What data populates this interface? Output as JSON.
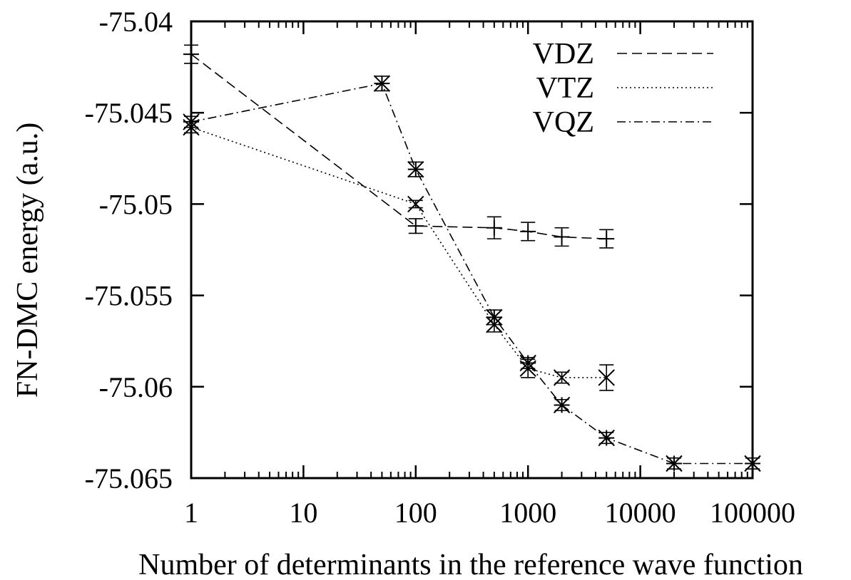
{
  "chart_data": {
    "type": "line",
    "xlabel": "Number of determinants in the reference wave function",
    "ylabel": "FN-DMC energy (a.u.)",
    "xscale": "log",
    "xlim": [
      1,
      100000
    ],
    "ylim": [
      -75.065,
      -75.04
    ],
    "xticks": [
      {
        "value": 1,
        "label": "1"
      },
      {
        "value": 10,
        "label": "10"
      },
      {
        "value": 100,
        "label": "100"
      },
      {
        "value": 1000,
        "label": "1000"
      },
      {
        "value": 10000,
        "label": "10000"
      },
      {
        "value": 100000,
        "label": "100000"
      }
    ],
    "yticks": [
      {
        "value": -75.04,
        "label": "-75.04"
      },
      {
        "value": -75.045,
        "label": "-75.045"
      },
      {
        "value": -75.05,
        "label": "-75.05"
      },
      {
        "value": -75.055,
        "label": "-75.055"
      },
      {
        "value": -75.06,
        "label": "-75.06"
      },
      {
        "value": -75.065,
        "label": "-75.065"
      }
    ],
    "legend_position": "top-right",
    "grid": false,
    "series": [
      {
        "name": "VDZ",
        "marker": "plus",
        "line_style": "dashed",
        "points": [
          {
            "x": 1,
            "y": -75.0418,
            "err": 0.0005
          },
          {
            "x": 100,
            "y": -75.0512,
            "err": 0.0004
          },
          {
            "x": 500,
            "y": -75.0513,
            "err": 0.0006
          },
          {
            "x": 1000,
            "y": -75.0515,
            "err": 0.0005
          },
          {
            "x": 2000,
            "y": -75.0518,
            "err": 0.0005
          },
          {
            "x": 5000,
            "y": -75.0519,
            "err": 0.0005
          }
        ]
      },
      {
        "name": "VTZ",
        "marker": "cross",
        "line_style": "dotted",
        "points": [
          {
            "x": 1,
            "y": -75.0458,
            "err": 0.0003
          },
          {
            "x": 100,
            "y": -75.05,
            "err": 0.0002
          },
          {
            "x": 500,
            "y": -75.0566,
            "err": 0.0004
          },
          {
            "x": 1000,
            "y": -75.059,
            "err": 0.0005
          },
          {
            "x": 2000,
            "y": -75.0595,
            "err": 0.0003
          },
          {
            "x": 5000,
            "y": -75.0595,
            "err": 0.0007
          }
        ]
      },
      {
        "name": "VQZ",
        "marker": "star",
        "line_style": "dashdot",
        "points": [
          {
            "x": 1,
            "y": -75.0455,
            "err": 0.0003
          },
          {
            "x": 50,
            "y": -75.0434,
            "err": 0.0004
          },
          {
            "x": 100,
            "y": -75.0481,
            "err": 0.0004
          },
          {
            "x": 500,
            "y": -75.0562,
            "err": 0.0004
          },
          {
            "x": 1000,
            "y": -75.0587,
            "err": 0.0003
          },
          {
            "x": 2000,
            "y": -75.061,
            "err": 0.0003
          },
          {
            "x": 5000,
            "y": -75.0628,
            "err": 0.0003
          },
          {
            "x": 20000,
            "y": -75.0642,
            "err": 0.0003
          },
          {
            "x": 100000,
            "y": -75.0642,
            "err": 0.0003
          }
        ]
      }
    ]
  }
}
